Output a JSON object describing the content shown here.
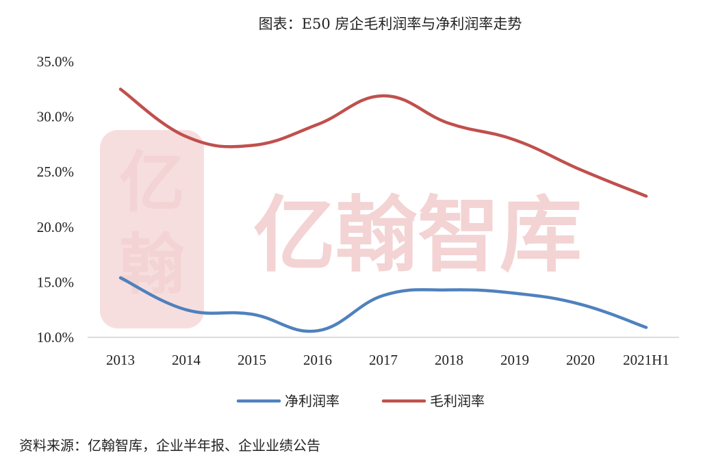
{
  "chart_data": {
    "type": "line",
    "title": "图表：E50 房企毛利润率与净利润率走势",
    "categories": [
      "2013",
      "2014",
      "2015",
      "2016",
      "2017",
      "2018",
      "2019",
      "2020",
      "2021H1"
    ],
    "ylim": [
      10,
      35
    ],
    "yticks": [
      "10.0%",
      "15.0%",
      "20.0%",
      "25.0%",
      "30.0%",
      "35.0%"
    ],
    "yticks_values": [
      10,
      15,
      20,
      25,
      30,
      35
    ],
    "grid": false,
    "legend": "bottom",
    "series": [
      {
        "name": "净利润率",
        "color": "#4f81bd",
        "values": [
          15.4,
          12.5,
          12.1,
          10.6,
          13.8,
          14.3,
          14.0,
          13.0,
          10.9
        ]
      },
      {
        "name": "毛利润率",
        "color": "#c0504d",
        "values": [
          32.5,
          28.2,
          27.4,
          29.3,
          31.9,
          29.4,
          27.9,
          25.2,
          22.8
        ]
      }
    ]
  },
  "watermark": {
    "text": "亿翰智库",
    "seal_text": "亿翰"
  },
  "source": "资料来源：亿翰智库，企业半年报、企业业绩公告"
}
